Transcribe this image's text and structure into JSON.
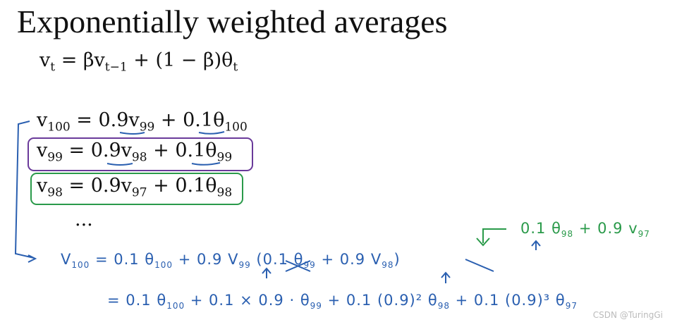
{
  "title": "Exponentially weighted averages",
  "formula": {
    "parts": [
      "v",
      "t",
      " = βv",
      "t−1",
      " + (1 − β)θ",
      "t"
    ]
  },
  "equations": [
    {
      "parts": [
        "v",
        "100",
        " = 0.9v",
        "99",
        " + 0.1θ",
        "100"
      ]
    },
    {
      "parts": [
        "v",
        "99",
        " = 0.9v",
        "98",
        " + 0.1θ",
        "99"
      ]
    },
    {
      "parts": [
        "v",
        "98",
        " = 0.9v",
        "97",
        " + 0.1θ",
        "98"
      ]
    }
  ],
  "ellipsis": "...",
  "handwritten": [
    {
      "parts": [
        "V",
        "100",
        " = 0.1 θ",
        "100",
        " + 0.9 V",
        "99",
        " (0.1 θ",
        "99",
        " + 0.9 V",
        "98",
        ")"
      ]
    },
    {
      "parts": [
        "= 0.1 θ",
        "100",
        " + 0.1 × 0.9 · θ",
        "99",
        " + 0.1 (0.9)² θ",
        "98",
        " + 0.1 (0.9)³ θ",
        "97"
      ]
    }
  ],
  "note": {
    "parts": [
      "0.1 θ",
      "98",
      " + 0.9 v",
      "97"
    ]
  },
  "watermark": "CSDN @TuringGi"
}
